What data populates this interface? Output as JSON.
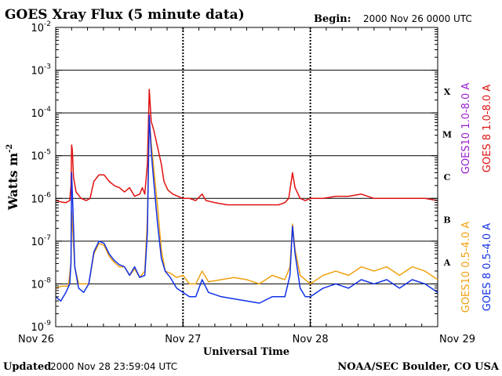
{
  "chart_data": {
    "type": "line",
    "title": "GOES Xray Flux (5 minute data)",
    "begin_label": "Begin:",
    "begin_value": "2000 Nov 26 0000 UTC",
    "xlabel": "Universal Time",
    "ylabel": "Watts m",
    "ylabel_sup": "-2",
    "y_scale": "log",
    "ylim": [
      1e-09,
      0.01
    ],
    "xlim": [
      0,
      3
    ],
    "x_unit": "days since 2000 Nov 26 00:00 UTC",
    "x_ticks": [
      {
        "value": 0,
        "label": "Nov 26"
      },
      {
        "value": 1,
        "label": "Nov 27"
      },
      {
        "value": 2,
        "label": "Nov 28"
      },
      {
        "value": 3,
        "label": "Nov 29"
      }
    ],
    "y_ticks": [
      {
        "exp": -9,
        "label": "10",
        "sup": "-9"
      },
      {
        "exp": -8,
        "label": "10",
        "sup": "-8"
      },
      {
        "exp": -7,
        "label": "10",
        "sup": "-7"
      },
      {
        "exp": -6,
        "label": "10",
        "sup": "-6"
      },
      {
        "exp": -5,
        "label": "10",
        "sup": "-5"
      },
      {
        "exp": -4,
        "label": "10",
        "sup": "-4"
      },
      {
        "exp": -3,
        "label": "10",
        "sup": "-3"
      },
      {
        "exp": -2,
        "label": "10",
        "sup": "-2"
      }
    ],
    "flare_classes": [
      {
        "label": "A",
        "exp": -7.5
      },
      {
        "label": "B",
        "exp": -6.5
      },
      {
        "label": "C",
        "exp": -5.5
      },
      {
        "label": "M",
        "exp": -4.5
      },
      {
        "label": "X",
        "exp": -3.5
      }
    ],
    "grid": "horizontal lines at each decade; dashed vertical lines at day boundaries",
    "legend_placement": "right side, vertical",
    "series": [
      {
        "name": "GOES10 1.0-8.0 A",
        "color": "#9a1fd0",
        "points": []
      },
      {
        "name": "GOES 8 1.0-8.0 A",
        "color": "#e01010",
        "points": [
          [
            0.0,
            -6.05
          ],
          [
            0.04,
            -6.08
          ],
          [
            0.08,
            -6.1
          ],
          [
            0.11,
            -6.05
          ],
          [
            0.12,
            -5.7
          ],
          [
            0.125,
            -4.75
          ],
          [
            0.13,
            -4.85
          ],
          [
            0.14,
            -5.5
          ],
          [
            0.16,
            -5.85
          ],
          [
            0.2,
            -6.0
          ],
          [
            0.24,
            -6.05
          ],
          [
            0.27,
            -6.0
          ],
          [
            0.3,
            -5.6
          ],
          [
            0.34,
            -5.45
          ],
          [
            0.38,
            -5.45
          ],
          [
            0.42,
            -5.6
          ],
          [
            0.46,
            -5.7
          ],
          [
            0.5,
            -5.75
          ],
          [
            0.54,
            -5.85
          ],
          [
            0.58,
            -5.75
          ],
          [
            0.62,
            -5.95
          ],
          [
            0.66,
            -5.9
          ],
          [
            0.68,
            -5.75
          ],
          [
            0.7,
            -5.9
          ],
          [
            0.72,
            -5.2
          ],
          [
            0.735,
            -3.45
          ],
          [
            0.75,
            -4.2
          ],
          [
            0.77,
            -4.4
          ],
          [
            0.8,
            -4.8
          ],
          [
            0.83,
            -5.2
          ],
          [
            0.85,
            -5.6
          ],
          [
            0.88,
            -5.8
          ],
          [
            0.92,
            -5.9
          ],
          [
            0.96,
            -5.95
          ],
          [
            1.0,
            -6.0
          ],
          [
            1.05,
            -6.0
          ],
          [
            1.1,
            -6.05
          ],
          [
            1.15,
            -5.9
          ],
          [
            1.18,
            -6.05
          ],
          [
            1.25,
            -6.1
          ],
          [
            1.35,
            -6.15
          ],
          [
            1.45,
            -6.15
          ],
          [
            1.55,
            -6.15
          ],
          [
            1.65,
            -6.15
          ],
          [
            1.75,
            -6.15
          ],
          [
            1.8,
            -6.1
          ],
          [
            1.83,
            -6.0
          ],
          [
            1.86,
            -5.4
          ],
          [
            1.88,
            -5.75
          ],
          [
            1.92,
            -6.0
          ],
          [
            1.96,
            -6.05
          ],
          [
            2.0,
            -6.0
          ],
          [
            2.1,
            -6.0
          ],
          [
            2.2,
            -5.95
          ],
          [
            2.3,
            -5.95
          ],
          [
            2.4,
            -5.9
          ],
          [
            2.5,
            -6.0
          ],
          [
            2.6,
            -6.0
          ],
          [
            2.7,
            -6.0
          ],
          [
            2.8,
            -6.0
          ],
          [
            2.9,
            -6.0
          ],
          [
            3.0,
            -6.05
          ]
        ]
      },
      {
        "name": "GOES10 0.5-4.0 A",
        "color": "#f0a010",
        "points": [
          [
            0.0,
            -8.1
          ],
          [
            0.05,
            -8.05
          ],
          [
            0.1,
            -8.05
          ],
          [
            0.12,
            -7.5
          ],
          [
            0.125,
            -6.3
          ],
          [
            0.135,
            -6.8
          ],
          [
            0.15,
            -7.6
          ],
          [
            0.18,
            -8.0
          ],
          [
            0.22,
            -8.0
          ],
          [
            0.26,
            -8.0
          ],
          [
            0.3,
            -7.3
          ],
          [
            0.34,
            -7.05
          ],
          [
            0.38,
            -7.1
          ],
          [
            0.42,
            -7.35
          ],
          [
            0.46,
            -7.5
          ],
          [
            0.5,
            -7.6
          ],
          [
            0.54,
            -7.6
          ],
          [
            0.58,
            -7.8
          ],
          [
            0.62,
            -7.65
          ],
          [
            0.66,
            -7.85
          ],
          [
            0.7,
            -7.7
          ],
          [
            0.72,
            -6.5
          ],
          [
            0.735,
            -4.1
          ],
          [
            0.75,
            -4.7
          ],
          [
            0.77,
            -5.3
          ],
          [
            0.8,
            -6.2
          ],
          [
            0.83,
            -7.2
          ],
          [
            0.86,
            -7.7
          ],
          [
            0.9,
            -7.75
          ],
          [
            0.95,
            -7.85
          ],
          [
            1.0,
            -7.8
          ],
          [
            1.05,
            -8.0
          ],
          [
            1.1,
            -8.0
          ],
          [
            1.15,
            -7.7
          ],
          [
            1.2,
            -7.95
          ],
          [
            1.3,
            -7.9
          ],
          [
            1.4,
            -7.85
          ],
          [
            1.5,
            -7.9
          ],
          [
            1.6,
            -8.0
          ],
          [
            1.7,
            -7.8
          ],
          [
            1.8,
            -7.9
          ],
          [
            1.84,
            -7.6
          ],
          [
            1.86,
            -6.6
          ],
          [
            1.88,
            -7.2
          ],
          [
            1.92,
            -7.8
          ],
          [
            1.96,
            -7.9
          ],
          [
            2.0,
            -8.0
          ],
          [
            2.1,
            -7.8
          ],
          [
            2.2,
            -7.7
          ],
          [
            2.3,
            -7.8
          ],
          [
            2.4,
            -7.6
          ],
          [
            2.5,
            -7.7
          ],
          [
            2.6,
            -7.6
          ],
          [
            2.7,
            -7.8
          ],
          [
            2.8,
            -7.6
          ],
          [
            2.9,
            -7.7
          ],
          [
            3.0,
            -7.9
          ]
        ]
      },
      {
        "name": "GOES 8 0.5-4.0 A",
        "color": "#1030e8",
        "points": [
          [
            0.0,
            -8.3
          ],
          [
            0.04,
            -8.4
          ],
          [
            0.08,
            -8.2
          ],
          [
            0.11,
            -8.0
          ],
          [
            0.12,
            -7.5
          ],
          [
            0.125,
            -5.4
          ],
          [
            0.135,
            -6.2
          ],
          [
            0.15,
            -7.6
          ],
          [
            0.18,
            -8.1
          ],
          [
            0.22,
            -8.2
          ],
          [
            0.26,
            -8.0
          ],
          [
            0.3,
            -7.25
          ],
          [
            0.34,
            -7.0
          ],
          [
            0.38,
            -7.05
          ],
          [
            0.42,
            -7.3
          ],
          [
            0.46,
            -7.45
          ],
          [
            0.5,
            -7.55
          ],
          [
            0.54,
            -7.6
          ],
          [
            0.58,
            -7.8
          ],
          [
            0.62,
            -7.6
          ],
          [
            0.66,
            -7.85
          ],
          [
            0.7,
            -7.8
          ],
          [
            0.72,
            -6.8
          ],
          [
            0.735,
            -4.05
          ],
          [
            0.75,
            -4.9
          ],
          [
            0.77,
            -5.6
          ],
          [
            0.8,
            -6.6
          ],
          [
            0.83,
            -7.4
          ],
          [
            0.86,
            -7.7
          ],
          [
            0.9,
            -7.85
          ],
          [
            0.95,
            -8.1
          ],
          [
            1.0,
            -8.2
          ],
          [
            1.05,
            -8.3
          ],
          [
            1.1,
            -8.3
          ],
          [
            1.15,
            -7.9
          ],
          [
            1.2,
            -8.2
          ],
          [
            1.3,
            -8.3
          ],
          [
            1.4,
            -8.35
          ],
          [
            1.5,
            -8.4
          ],
          [
            1.6,
            -8.45
          ],
          [
            1.7,
            -8.3
          ],
          [
            1.8,
            -8.3
          ],
          [
            1.84,
            -7.8
          ],
          [
            1.86,
            -6.65
          ],
          [
            1.88,
            -7.3
          ],
          [
            1.92,
            -8.1
          ],
          [
            1.96,
            -8.3
          ],
          [
            2.0,
            -8.3
          ],
          [
            2.1,
            -8.1
          ],
          [
            2.2,
            -8.0
          ],
          [
            2.3,
            -8.1
          ],
          [
            2.4,
            -7.9
          ],
          [
            2.5,
            -8.0
          ],
          [
            2.6,
            -7.9
          ],
          [
            2.7,
            -8.1
          ],
          [
            2.8,
            -7.9
          ],
          [
            2.9,
            -8.0
          ],
          [
            3.0,
            -8.2
          ]
        ]
      }
    ]
  },
  "footer": {
    "updated_label": "Updated",
    "updated_value": "2000 Nov 28 23:59:04 UTC",
    "credit": "NOAA/SEC Boulder, CO USA"
  }
}
